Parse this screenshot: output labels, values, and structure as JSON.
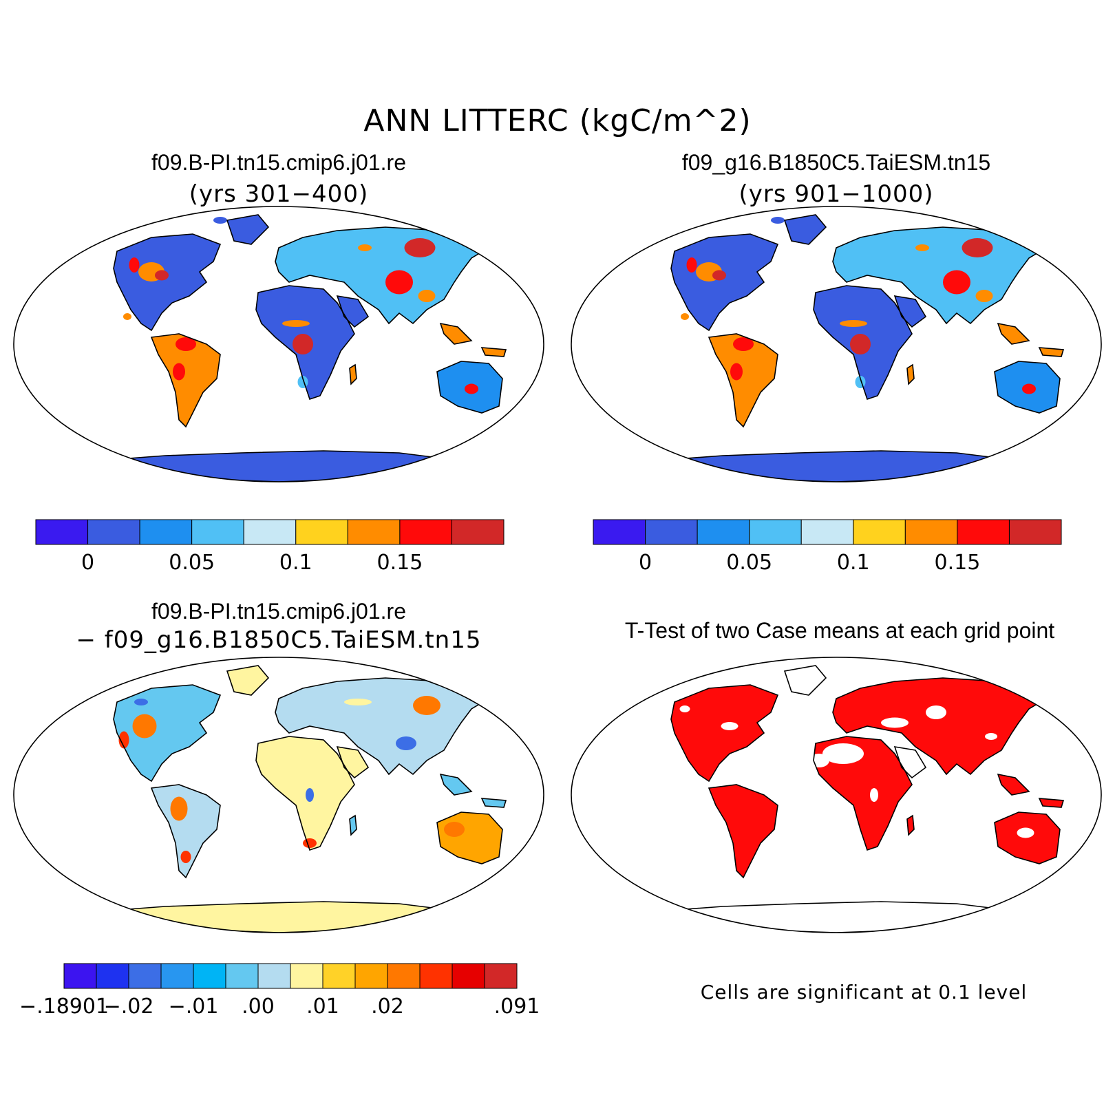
{
  "title": "ANN LITTERC (kgC/m^2)",
  "panels": [
    {
      "id": "case1",
      "title": "f09.B-PI.tn15.cmip6.j01.re",
      "subtitle": "(yrs 301−400)",
      "colorbar": {
        "colors": [
          "#3a1af0",
          "#3a5ce0",
          "#1e8ff0",
          "#50c0f5",
          "#c8e8f5",
          "#ffd21e",
          "#ff8c00",
          "#ff0a0a",
          "#d22828"
        ],
        "labels": [
          "0",
          "0.05",
          "0.1",
          "0.15"
        ],
        "label_after_box": [
          1,
          3,
          5,
          7
        ]
      }
    },
    {
      "id": "case2",
      "title": "f09_g16.B1850C5.TaiESM.tn15",
      "subtitle": "(yrs 901−1000)",
      "colorbar": {
        "colors": [
          "#3a1af0",
          "#3a5ce0",
          "#1e8ff0",
          "#50c0f5",
          "#c8e8f5",
          "#ffd21e",
          "#ff8c00",
          "#ff0a0a",
          "#d22828"
        ],
        "labels": [
          "0",
          "0.05",
          "0.1",
          "0.15"
        ],
        "label_after_box": [
          1,
          3,
          5,
          7
        ]
      }
    },
    {
      "id": "diff",
      "title": "f09.B-PI.tn15.cmip6.j01.re",
      "subtitle": "− f09_g16.B1850C5.TaiESM.tn15",
      "colorbar": {
        "colors": [
          "#3c14f0",
          "#1e32f0",
          "#3c6ee6",
          "#2896f0",
          "#00b4f5",
          "#64c8f0",
          "#b4dcf0",
          "#fff5a0",
          "#ffd228",
          "#ffa500",
          "#ff7800",
          "#ff3200",
          "#e60000",
          "#d22828"
        ],
        "labels": [
          "−.18901",
          "−.02",
          "−.01",
          ".00",
          ".01",
          ".02",
          ".091"
        ],
        "label_after_box": [
          0,
          2,
          4,
          6,
          8,
          10,
          14
        ]
      }
    },
    {
      "id": "ttest",
      "title": "T-Test of two Case means at each grid point",
      "note": "Cells are significant at 0.1 level"
    }
  ]
}
